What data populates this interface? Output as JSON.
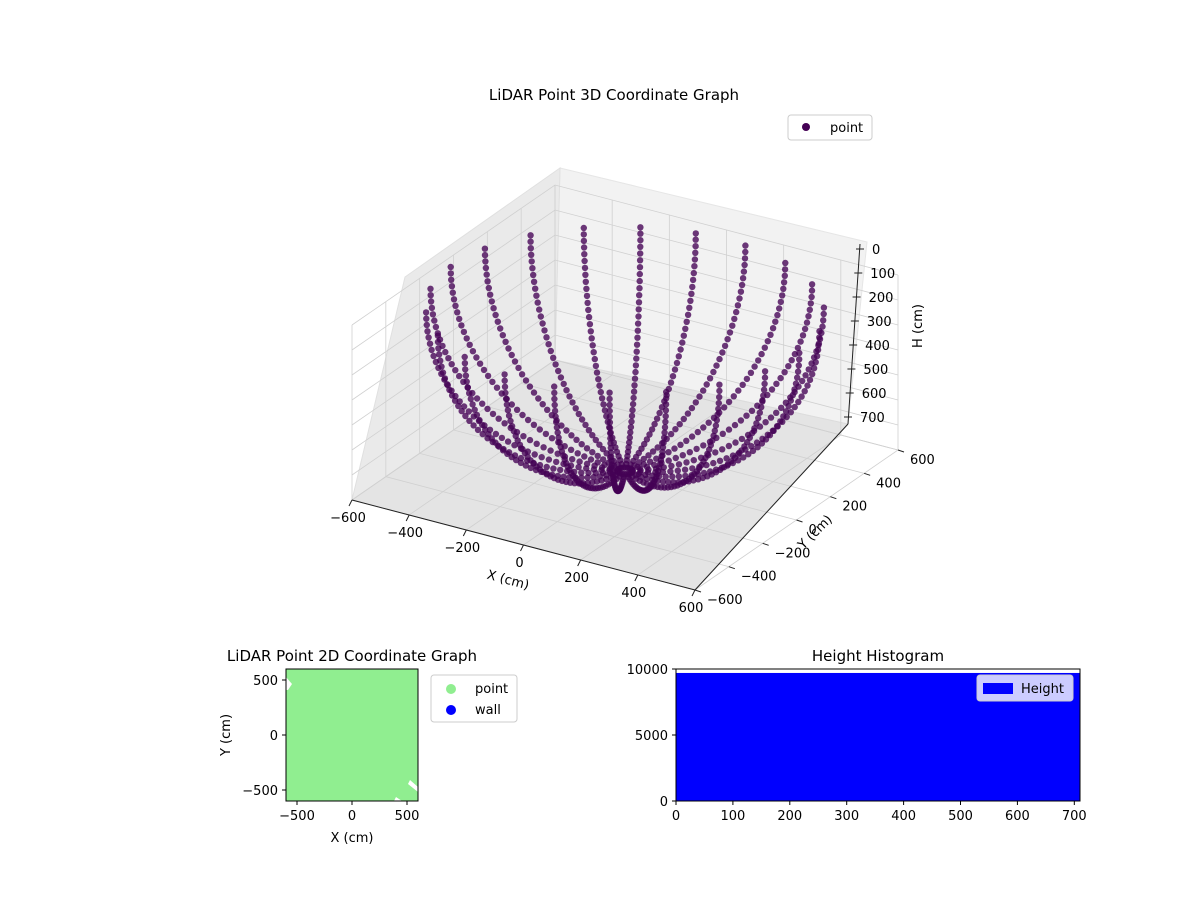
{
  "chart_data": [
    {
      "type": "scatter3d",
      "title": "LiDAR Point 3D Coordinate Graph",
      "xlabel": "X (cm)",
      "ylabel": "Y (cm)",
      "zlabel": "H (cm)",
      "xlim": [
        -600,
        600
      ],
      "ylim": [
        -600,
        600
      ],
      "zlim": [
        0,
        700
      ],
      "z_inverted": true,
      "x_ticks": [
        "−600",
        "−400",
        "−200",
        "0",
        "200",
        "400",
        "600"
      ],
      "y_ticks": [
        "−600",
        "−400",
        "−200",
        "0",
        "200",
        "400",
        "600"
      ],
      "z_ticks": [
        "0",
        "100",
        "200",
        "300",
        "400",
        "500",
        "600",
        "700"
      ],
      "legend": {
        "position": "upper-right",
        "entries": [
          {
            "label": "point",
            "color": "#440154"
          }
        ]
      },
      "series": [
        {
          "name": "point",
          "color": "#440154",
          "shape": "hemispherical scan",
          "ring_count": 22,
          "points_per_ring": 40
        }
      ],
      "grid": true
    },
    {
      "type": "scatter",
      "title": "LiDAR Point 2D Coordinate Graph",
      "xlabel": "X (cm)",
      "ylabel": "Y (cm)",
      "xlim": [
        -600,
        600
      ],
      "ylim": [
        -600,
        600
      ],
      "x_ticks": [
        "−500",
        "0",
        "500"
      ],
      "y_ticks": [
        "−500",
        "0",
        "500"
      ],
      "legend": {
        "position": "outside-right",
        "entries": [
          {
            "label": "point",
            "color": "#90ee90"
          },
          {
            "label": "wall",
            "color": "#0000ff"
          }
        ]
      },
      "series": [
        {
          "name": "point",
          "color": "#90ee90",
          "coverage": "full"
        },
        {
          "name": "wall",
          "color": "#0000ff",
          "values": []
        }
      ]
    },
    {
      "type": "bar",
      "title": "Height Histogram",
      "xlim": [
        0,
        710
      ],
      "ylim": [
        0,
        10000
      ],
      "x_ticks": [
        "0",
        "100",
        "200",
        "300",
        "400",
        "500",
        "600",
        "700"
      ],
      "y_ticks": [
        "0",
        "5000",
        "10000"
      ],
      "legend": {
        "position": "upper-right",
        "entries": [
          {
            "label": "Height",
            "color": "#0000ff"
          }
        ]
      },
      "series": [
        {
          "name": "Height",
          "color": "#0000ff",
          "bins": [
            {
              "x0": 0,
              "x1": 710,
              "count": 9700
            }
          ]
        }
      ]
    }
  ]
}
